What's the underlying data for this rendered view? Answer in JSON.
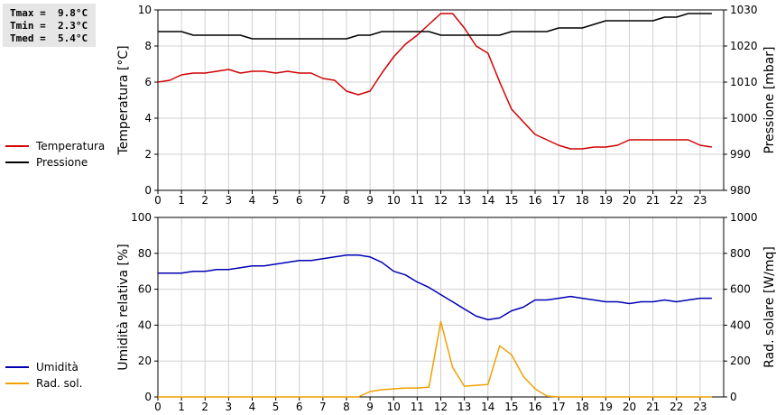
{
  "stats": {
    "tmax": "Tmax =  9.8°C",
    "tmin": "Tmin =  2.3°C",
    "tmed": "Tmed =  5.4°C"
  },
  "legends": {
    "top": [
      {
        "label": "Temperatura",
        "color": "#d00000"
      },
      {
        "label": "Pressione",
        "color": "#000000"
      }
    ],
    "bottom": [
      {
        "label": "Umidità",
        "color": "#0000b4"
      },
      {
        "label": "Rad. sol.",
        "color": "#f0a000"
      }
    ]
  },
  "chart_data": [
    {
      "type": "line",
      "ylabel": "Temperatura [°C]",
      "y2label": "Pressione [mbar]",
      "xticks": [
        "0",
        "1",
        "2",
        "3",
        "4",
        "5",
        "6",
        "7",
        "8",
        "9",
        "10",
        "11",
        "12",
        "13",
        "14",
        "15",
        "16",
        "17",
        "18",
        "19",
        "20",
        "21",
        "22",
        "23"
      ],
      "xlim": [
        0,
        24
      ],
      "ylim": [
        0,
        10
      ],
      "yticks": [
        "0",
        "2",
        "4",
        "6",
        "8",
        "10"
      ],
      "y2lim": [
        980,
        1030
      ],
      "y2ticks": [
        "980",
        "990",
        "1000",
        "1010",
        "1020",
        "1030"
      ],
      "grid": true,
      "series": [
        {
          "name": "Temperatura",
          "axis": "left",
          "color": "#d00000",
          "x": [
            0,
            0.5,
            1,
            1.5,
            2,
            2.5,
            3,
            3.5,
            4,
            4.5,
            5,
            5.5,
            6,
            6.5,
            7,
            7.5,
            8,
            8.5,
            9,
            9.5,
            10,
            10.5,
            11,
            11.5,
            12,
            12.5,
            13,
            13.5,
            14,
            14.5,
            15,
            15.5,
            16,
            16.5,
            17,
            17.5,
            18,
            18.5,
            19,
            19.5,
            20,
            20.5,
            21,
            21.5,
            22,
            22.5,
            23,
            23.5
          ],
          "y": [
            6.0,
            6.1,
            6.4,
            6.5,
            6.5,
            6.6,
            6.7,
            6.5,
            6.6,
            6.6,
            6.5,
            6.6,
            6.5,
            6.5,
            6.2,
            6.1,
            5.5,
            5.3,
            5.5,
            6.5,
            7.4,
            8.1,
            8.6,
            9.2,
            9.8,
            9.8,
            9.0,
            8.0,
            7.6,
            6.0,
            4.5,
            3.8,
            3.1,
            2.8,
            2.5,
            2.3,
            2.3,
            2.4,
            2.4,
            2.5,
            2.8,
            2.8,
            2.8,
            2.8,
            2.8,
            2.8,
            2.5,
            2.4
          ]
        },
        {
          "name": "Pressione",
          "axis": "right",
          "color": "#000000",
          "x": [
            0,
            0.5,
            1,
            1.5,
            2,
            2.5,
            3,
            3.5,
            4,
            4.5,
            5,
            5.5,
            6,
            6.5,
            7,
            7.5,
            8,
            8.5,
            9,
            9.5,
            10,
            10.5,
            11,
            11.5,
            12,
            12.5,
            13,
            13.5,
            14,
            14.5,
            15,
            15.5,
            16,
            16.5,
            17,
            17.5,
            18,
            18.5,
            19,
            19.5,
            20,
            20.5,
            21,
            21.5,
            22,
            22.5,
            23,
            23.5
          ],
          "y": [
            1024,
            1024,
            1024,
            1023,
            1023,
            1023,
            1023,
            1023,
            1022,
            1022,
            1022,
            1022,
            1022,
            1022,
            1022,
            1022,
            1022,
            1023,
            1023,
            1024,
            1024,
            1024,
            1024,
            1024,
            1023,
            1023,
            1023,
            1023,
            1023,
            1023,
            1024,
            1024,
            1024,
            1024,
            1025,
            1025,
            1025,
            1026,
            1027,
            1027,
            1027,
            1027,
            1027,
            1028,
            1028,
            1029,
            1029,
            1029
          ]
        }
      ]
    },
    {
      "type": "line",
      "ylabel": "Umidità relativa [%]",
      "y2label": "Rad. solare [W/mq]",
      "xticks": [
        "0",
        "1",
        "2",
        "3",
        "4",
        "5",
        "6",
        "7",
        "8",
        "9",
        "10",
        "11",
        "12",
        "13",
        "14",
        "15",
        "16",
        "17",
        "18",
        "19",
        "20",
        "21",
        "22",
        "23"
      ],
      "xlim": [
        0,
        24
      ],
      "ylim": [
        0,
        100
      ],
      "yticks": [
        "0",
        "20",
        "40",
        "60",
        "80",
        "100"
      ],
      "y2lim": [
        0,
        1000
      ],
      "y2ticks": [
        "0",
        "200",
        "400",
        "600",
        "800",
        "1000"
      ],
      "grid": true,
      "series": [
        {
          "name": "Umidità",
          "axis": "left",
          "color": "#0000b4",
          "x": [
            0,
            0.5,
            1,
            1.5,
            2,
            2.5,
            3,
            3.5,
            4,
            4.5,
            5,
            5.5,
            6,
            6.5,
            7,
            7.5,
            8,
            8.5,
            9,
            9.5,
            10,
            10.5,
            11,
            11.5,
            12,
            12.5,
            13,
            13.5,
            14,
            14.5,
            15,
            15.5,
            16,
            16.5,
            17,
            17.5,
            18,
            18.5,
            19,
            19.5,
            20,
            20.5,
            21,
            21.5,
            22,
            22.5,
            23,
            23.5
          ],
          "y": [
            69,
            69,
            69,
            70,
            70,
            71,
            71,
            72,
            73,
            73,
            74,
            75,
            76,
            76,
            77,
            78,
            79,
            79,
            78,
            75,
            70,
            68,
            64,
            61,
            57,
            53,
            49,
            45,
            43,
            44,
            48,
            50,
            54,
            54,
            55,
            56,
            55,
            54,
            53,
            53,
            52,
            53,
            53,
            54,
            53,
            54,
            55,
            55
          ]
        },
        {
          "name": "Rad. sol.",
          "axis": "right",
          "color": "#f0a000",
          "x": [
            0,
            1,
            2,
            3,
            4,
            5,
            6,
            7,
            8,
            8.5,
            9,
            9.5,
            10,
            10.5,
            11,
            11.5,
            12,
            12.5,
            13,
            13.5,
            14,
            14.5,
            15,
            15.5,
            16,
            16.5,
            17,
            18,
            19,
            20,
            21,
            22,
            23,
            23.5
          ],
          "y": [
            0,
            0,
            0,
            0,
            0,
            0,
            0,
            0,
            0,
            0,
            30,
            40,
            45,
            50,
            50,
            55,
            420,
            165,
            60,
            65,
            70,
            285,
            235,
            115,
            45,
            5,
            0,
            0,
            0,
            0,
            0,
            0,
            0,
            0
          ]
        }
      ]
    }
  ]
}
